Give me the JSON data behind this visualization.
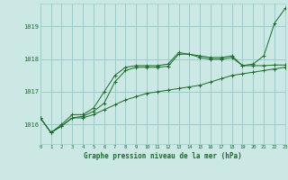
{
  "title": "Graphe pression niveau de la mer (hPa)",
  "bg_color": "#cbe8e4",
  "grid_color": "#99cccc",
  "line_color": "#1a6b2a",
  "xlim": [
    0,
    23
  ],
  "ylim": [
    1015.4,
    1019.7
  ],
  "yticks": [
    1016,
    1017,
    1018,
    1019
  ],
  "xtick_labels": [
    "0",
    "1",
    "2",
    "3",
    "4",
    "5",
    "6",
    "7",
    "8",
    "9",
    "10",
    "11",
    "12",
    "13",
    "14",
    "15",
    "16",
    "17",
    "18",
    "19",
    "20",
    "21",
    "22",
    "23"
  ],
  "series": [
    [
      1016.2,
      1015.75,
      1015.95,
      1016.2,
      1016.2,
      1016.3,
      1016.45,
      1016.6,
      1016.75,
      1016.85,
      1016.95,
      1017.0,
      1017.05,
      1017.1,
      1017.15,
      1017.2,
      1017.3,
      1017.4,
      1017.5,
      1017.55,
      1017.6,
      1017.65,
      1017.7,
      1017.75
    ],
    [
      1016.2,
      1015.75,
      1015.95,
      1016.2,
      1016.25,
      1016.4,
      1016.65,
      1017.3,
      1017.65,
      1017.75,
      1017.75,
      1017.75,
      1017.78,
      1018.15,
      1018.15,
      1018.05,
      1018.0,
      1018.0,
      1018.05,
      1017.8,
      1017.8,
      1017.8,
      1017.82,
      1017.82
    ],
    [
      1016.2,
      1015.75,
      1016.0,
      1016.3,
      1016.3,
      1016.5,
      1017.0,
      1017.5,
      1017.75,
      1017.8,
      1017.8,
      1017.8,
      1017.85,
      1018.2,
      1018.15,
      1018.1,
      1018.05,
      1018.05,
      1018.1,
      1017.8,
      1017.85,
      1018.1,
      1019.1,
      1019.55
    ]
  ]
}
